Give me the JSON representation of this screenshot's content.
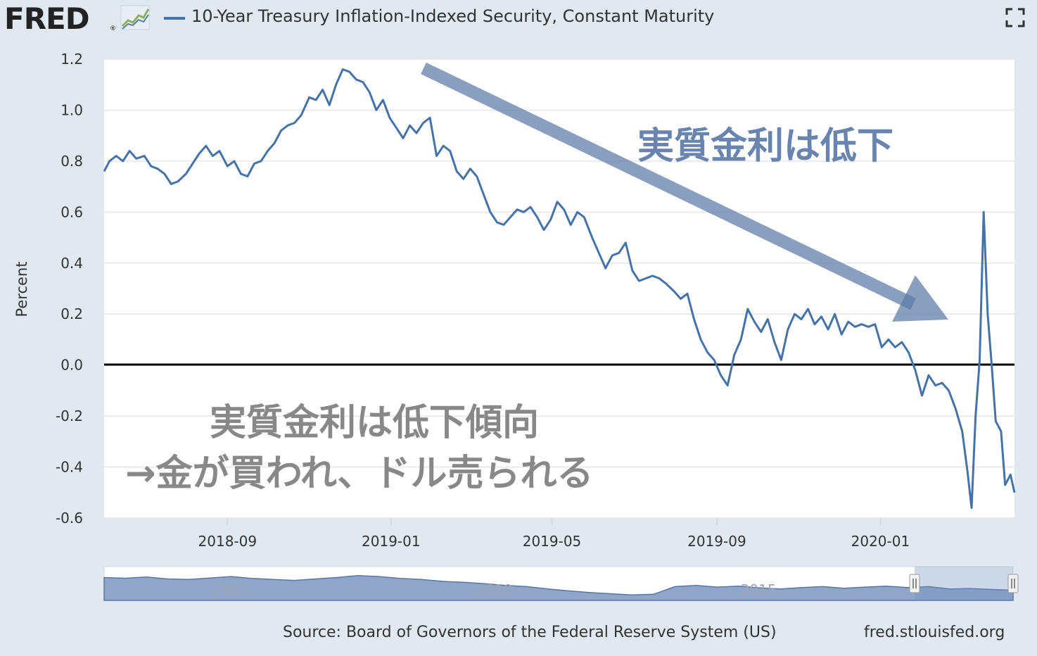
{
  "header": {
    "logo_text": "FRED",
    "logo_registered": "®",
    "series_title": "10-Year Treasury Inflation-Indexed Security, Constant Maturity"
  },
  "icons": {
    "logo": "fred-chart-logo-icon",
    "fullscreen": "fullscreen-icon"
  },
  "footer": {
    "source": "Source: Board of Governors of the Federal Reserve System (US)",
    "site": "fred.stlouisfed.org"
  },
  "annotations": {
    "arrow_label": "実質金利は低下",
    "bottom_line1": "実質金利は低下傾向",
    "bottom_line2": "→金が買われ、ドル売られる"
  },
  "navigator": {
    "labels": [
      "2005",
      "2010",
      "2015"
    ]
  },
  "colors": {
    "series": "#4572a7",
    "arrow": "#5d7aa6",
    "bottom_text": "#888888",
    "background": "#e1e9f0",
    "plot": "#ffffff"
  },
  "chart_data": {
    "type": "line",
    "ylabel": "Percent",
    "xlabel": "",
    "ylim": [
      -0.6,
      1.2
    ],
    "yticks": [
      "1.2",
      "1.0",
      "0.8",
      "0.6",
      "0.4",
      "0.2",
      "0.0",
      "-0.2",
      "-0.4",
      "-0.6"
    ],
    "xticks": [
      "2018-09",
      "2019-01",
      "2019-05",
      "2019-09",
      "2020-01"
    ],
    "grid": true,
    "zero_line": true,
    "series": [
      {
        "values": [
          [
            "2018-06-01",
            0.76
          ],
          [
            "2018-06-05",
            0.8
          ],
          [
            "2018-06-10",
            0.82
          ],
          [
            "2018-06-15",
            0.8
          ],
          [
            "2018-06-20",
            0.84
          ],
          [
            "2018-06-25",
            0.81
          ],
          [
            "2018-07-01",
            0.82
          ],
          [
            "2018-07-06",
            0.78
          ],
          [
            "2018-07-11",
            0.77
          ],
          [
            "2018-07-16",
            0.75
          ],
          [
            "2018-07-21",
            0.71
          ],
          [
            "2018-07-26",
            0.72
          ],
          [
            "2018-08-01",
            0.75
          ],
          [
            "2018-08-06",
            0.79
          ],
          [
            "2018-08-11",
            0.83
          ],
          [
            "2018-08-16",
            0.86
          ],
          [
            "2018-08-21",
            0.82
          ],
          [
            "2018-08-26",
            0.84
          ],
          [
            "2018-09-01",
            0.78
          ],
          [
            "2018-09-06",
            0.8
          ],
          [
            "2018-09-11",
            0.75
          ],
          [
            "2018-09-16",
            0.74
          ],
          [
            "2018-09-21",
            0.79
          ],
          [
            "2018-09-26",
            0.8
          ],
          [
            "2018-10-01",
            0.84
          ],
          [
            "2018-10-06",
            0.87
          ],
          [
            "2018-10-11",
            0.92
          ],
          [
            "2018-10-16",
            0.94
          ],
          [
            "2018-10-21",
            0.95
          ],
          [
            "2018-10-26",
            0.98
          ],
          [
            "2018-11-01",
            1.05
          ],
          [
            "2018-11-06",
            1.04
          ],
          [
            "2018-11-11",
            1.08
          ],
          [
            "2018-11-16",
            1.02
          ],
          [
            "2018-11-21",
            1.1
          ],
          [
            "2018-11-26",
            1.16
          ],
          [
            "2018-12-01",
            1.15
          ],
          [
            "2018-12-06",
            1.12
          ],
          [
            "2018-12-11",
            1.11
          ],
          [
            "2018-12-16",
            1.07
          ],
          [
            "2018-12-21",
            1.0
          ],
          [
            "2018-12-26",
            1.04
          ],
          [
            "2018-12-31",
            0.97
          ],
          [
            "2019-01-05",
            0.93
          ],
          [
            "2019-01-10",
            0.89
          ],
          [
            "2019-01-15",
            0.94
          ],
          [
            "2019-01-20",
            0.91
          ],
          [
            "2019-01-25",
            0.95
          ],
          [
            "2019-01-30",
            0.97
          ],
          [
            "2019-02-04",
            0.82
          ],
          [
            "2019-02-09",
            0.86
          ],
          [
            "2019-02-14",
            0.84
          ],
          [
            "2019-02-19",
            0.76
          ],
          [
            "2019-02-24",
            0.73
          ],
          [
            "2019-03-01",
            0.77
          ],
          [
            "2019-03-06",
            0.74
          ],
          [
            "2019-03-11",
            0.67
          ],
          [
            "2019-03-16",
            0.6
          ],
          [
            "2019-03-21",
            0.56
          ],
          [
            "2019-03-26",
            0.55
          ],
          [
            "2019-03-31",
            0.58
          ],
          [
            "2019-04-05",
            0.61
          ],
          [
            "2019-04-10",
            0.6
          ],
          [
            "2019-04-15",
            0.62
          ],
          [
            "2019-04-20",
            0.58
          ],
          [
            "2019-04-25",
            0.53
          ],
          [
            "2019-04-30",
            0.57
          ],
          [
            "2019-05-05",
            0.64
          ],
          [
            "2019-05-10",
            0.61
          ],
          [
            "2019-05-15",
            0.55
          ],
          [
            "2019-05-20",
            0.6
          ],
          [
            "2019-05-25",
            0.58
          ],
          [
            "2019-05-31",
            0.5
          ],
          [
            "2019-06-05",
            0.44
          ],
          [
            "2019-06-10",
            0.38
          ],
          [
            "2019-06-15",
            0.43
          ],
          [
            "2019-06-20",
            0.44
          ],
          [
            "2019-06-25",
            0.48
          ],
          [
            "2019-06-30",
            0.37
          ],
          [
            "2019-07-05",
            0.33
          ],
          [
            "2019-07-10",
            0.34
          ],
          [
            "2019-07-15",
            0.35
          ],
          [
            "2019-07-20",
            0.34
          ],
          [
            "2019-07-25",
            0.32
          ],
          [
            "2019-07-31",
            0.29
          ],
          [
            "2019-08-05",
            0.26
          ],
          [
            "2019-08-10",
            0.28
          ],
          [
            "2019-08-15",
            0.18
          ],
          [
            "2019-08-20",
            0.1
          ],
          [
            "2019-08-25",
            0.05
          ],
          [
            "2019-08-30",
            0.02
          ],
          [
            "2019-09-04",
            -0.04
          ],
          [
            "2019-09-09",
            -0.08
          ],
          [
            "2019-09-14",
            0.04
          ],
          [
            "2019-09-19",
            0.1
          ],
          [
            "2019-09-24",
            0.22
          ],
          [
            "2019-09-29",
            0.17
          ],
          [
            "2019-10-04",
            0.13
          ],
          [
            "2019-10-09",
            0.18
          ],
          [
            "2019-10-14",
            0.09
          ],
          [
            "2019-10-19",
            0.02
          ],
          [
            "2019-10-24",
            0.14
          ],
          [
            "2019-10-29",
            0.2
          ],
          [
            "2019-11-03",
            0.18
          ],
          [
            "2019-11-08",
            0.22
          ],
          [
            "2019-11-13",
            0.16
          ],
          [
            "2019-11-18",
            0.19
          ],
          [
            "2019-11-23",
            0.14
          ],
          [
            "2019-11-28",
            0.2
          ],
          [
            "2019-12-03",
            0.12
          ],
          [
            "2019-12-08",
            0.17
          ],
          [
            "2019-12-13",
            0.15
          ],
          [
            "2019-12-18",
            0.16
          ],
          [
            "2019-12-23",
            0.15
          ],
          [
            "2019-12-28",
            0.16
          ],
          [
            "2020-01-02",
            0.07
          ],
          [
            "2020-01-07",
            0.1
          ],
          [
            "2020-01-12",
            0.07
          ],
          [
            "2020-01-17",
            0.09
          ],
          [
            "2020-01-22",
            0.05
          ],
          [
            "2020-01-27",
            -0.02
          ],
          [
            "2020-02-01",
            -0.12
          ],
          [
            "2020-02-06",
            -0.04
          ],
          [
            "2020-02-11",
            -0.08
          ],
          [
            "2020-02-16",
            -0.07
          ],
          [
            "2020-02-21",
            -0.1
          ],
          [
            "2020-02-26",
            -0.17
          ],
          [
            "2020-03-02",
            -0.26
          ],
          [
            "2020-03-06",
            -0.42
          ],
          [
            "2020-03-09",
            -0.56
          ],
          [
            "2020-03-12",
            -0.2
          ],
          [
            "2020-03-15",
            0.02
          ],
          [
            "2020-03-18",
            0.6
          ],
          [
            "2020-03-21",
            0.2
          ],
          [
            "2020-03-24",
            0.0
          ],
          [
            "2020-03-27",
            -0.22
          ],
          [
            "2020-03-31",
            -0.26
          ],
          [
            "2020-04-03",
            -0.47
          ],
          [
            "2020-04-07",
            -0.43
          ],
          [
            "2020-04-10",
            -0.5
          ]
        ]
      }
    ]
  }
}
